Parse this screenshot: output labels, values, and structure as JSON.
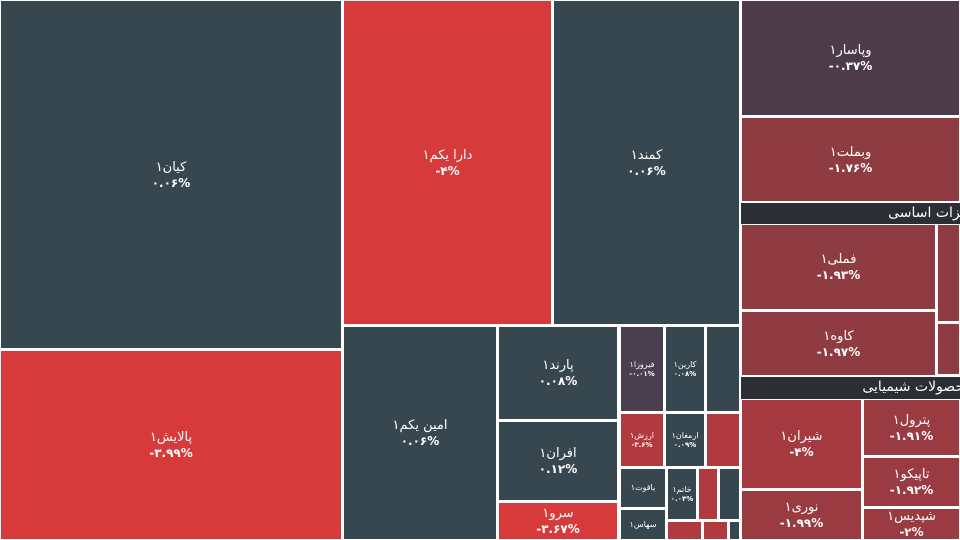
{
  "tiles": [
    {
      "name": "کیان۱",
      "change": "۰.۰۶%"
    },
    {
      "name": "پالایش۱",
      "change": "-۳.۹۹%"
    },
    {
      "name": "دارا یکم۱",
      "change": "-۴%"
    },
    {
      "name": "کمند۱",
      "change": "۰.۰۶%"
    },
    {
      "name": "امین یکم۱",
      "change": "۰.۰۶%"
    },
    {
      "name": "پارند۱",
      "change": "۰.۰۸%"
    },
    {
      "name": "افران۱",
      "change": "۰.۱۲%"
    },
    {
      "name": "سرو۱",
      "change": "-۳.۶۷%"
    },
    {
      "name": "فیروزا۱",
      "change": "-۰.۰۱%"
    },
    {
      "name": "کارین۱",
      "change": "۰.۰۸%"
    },
    {
      "name": "ارزش۱",
      "change": "-۳.۶%"
    },
    {
      "name": "ارمغان۱",
      "change": "۰.۰۹%"
    },
    {
      "name": "یاقوت۱"
    },
    {
      "name": "خاتم۱",
      "change": "۰.۰۴%"
    },
    {
      "name": "سهاس۱"
    },
    {
      "name": "وپاسار۱",
      "change": "-۰.۳۷%"
    },
    {
      "name": "وبملت۱",
      "change": "-۱.۷۶%"
    },
    {
      "name": "فملی۱",
      "change": "-۱.۹۳%"
    },
    {
      "name": "کاوه۱",
      "change": "-۱.۹۷%"
    },
    {
      "name": "شیران۱",
      "change": "-۴%"
    },
    {
      "name": "پترول۱",
      "change": "-۱.۹۱%"
    },
    {
      "name": "تاپیکو۱",
      "change": "-۱.۹۲%"
    },
    {
      "name": "نوری۱",
      "change": "-۱.۹۹%"
    },
    {
      "name": "شپدیس۱",
      "change": "-۲%"
    }
  ],
  "sectors": [
    "فلزات اساسی",
    "محصولات شیمیایی"
  ]
}
